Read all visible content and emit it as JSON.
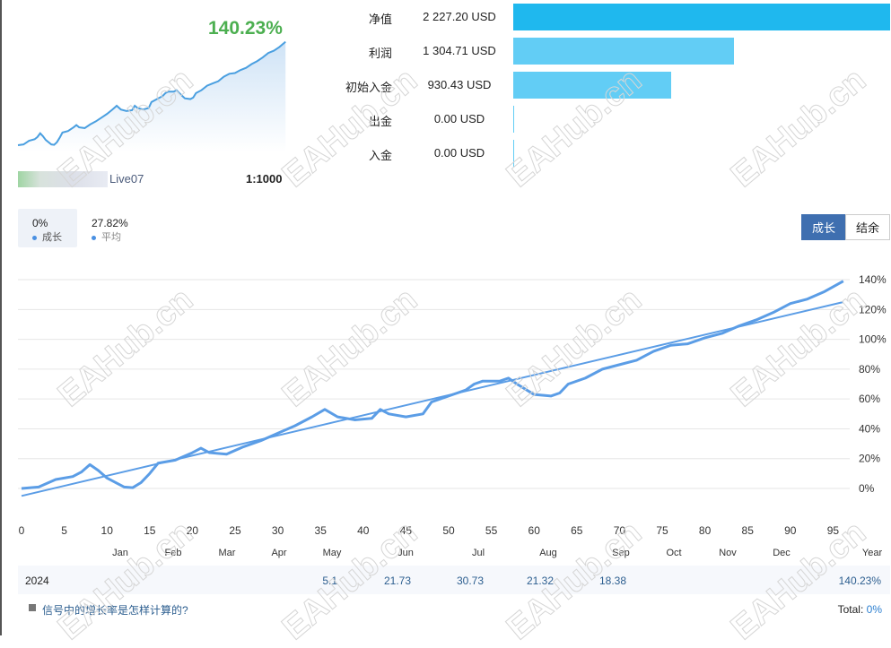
{
  "summary": {
    "growth": "140.23%",
    "account_suffix": "Live07",
    "leverage": "1:1000"
  },
  "stats": [
    {
      "label": "净值",
      "value": "2 227.20 USD",
      "fraction": 1.0,
      "color": "#1fb8ee"
    },
    {
      "label": "利润",
      "value": "1 304.71 USD",
      "fraction": 0.586,
      "color": "#62cdf5"
    },
    {
      "label": "初始入金",
      "value": "930.43 USD",
      "fraction": 0.418,
      "color": "#62cdf5"
    },
    {
      "label": "出金",
      "value": "0.00 USD",
      "fraction": 0,
      "color": "#62cdf5"
    },
    {
      "label": "入金",
      "value": "0.00 USD",
      "fraction": 0,
      "color": "#62cdf5"
    }
  ],
  "legend": {
    "growth_val": "0%",
    "growth_label": "成长",
    "avg_val": "27.82%",
    "avg_label": "平均"
  },
  "buttons": {
    "growth": "成长",
    "balance": "结余"
  },
  "watermark": "EAHub.cn",
  "chart_data": {
    "type": "line",
    "xlabel": "",
    "ylabel": "",
    "xlim": [
      0,
      97
    ],
    "ylim": [
      -10,
      150
    ],
    "x_ticks": [
      0,
      5,
      10,
      15,
      20,
      25,
      30,
      35,
      40,
      45,
      50,
      55,
      60,
      65,
      70,
      75,
      80,
      85,
      90,
      95
    ],
    "y_ticks": [
      0,
      20,
      40,
      60,
      80,
      100,
      120,
      140
    ],
    "y_tick_labels": [
      "0%",
      "20%",
      "40%",
      "60%",
      "80%",
      "100%",
      "120%",
      "140%"
    ],
    "series": [
      {
        "name": "成长",
        "color": "#5b9de6",
        "points": [
          [
            0,
            0
          ],
          [
            2,
            1
          ],
          [
            4,
            6
          ],
          [
            6,
            8
          ],
          [
            7,
            11
          ],
          [
            8,
            16
          ],
          [
            9,
            12
          ],
          [
            10,
            7
          ],
          [
            12,
            1
          ],
          [
            13,
            0.5
          ],
          [
            14,
            4
          ],
          [
            15,
            10
          ],
          [
            16,
            17
          ],
          [
            18,
            19
          ],
          [
            20,
            24
          ],
          [
            21,
            27
          ],
          [
            22,
            24
          ],
          [
            24,
            23
          ],
          [
            26,
            28
          ],
          [
            28,
            32
          ],
          [
            30,
            37
          ],
          [
            32,
            42
          ],
          [
            34,
            48
          ],
          [
            35.5,
            53
          ],
          [
            37,
            48
          ],
          [
            39,
            46
          ],
          [
            41,
            47
          ],
          [
            42,
            53
          ],
          [
            43,
            50
          ],
          [
            45,
            48
          ],
          [
            47,
            50
          ],
          [
            48,
            58
          ],
          [
            50,
            62
          ],
          [
            52,
            66
          ],
          [
            53,
            70
          ],
          [
            54,
            72
          ],
          [
            56,
            72
          ],
          [
            57,
            74
          ],
          [
            58,
            70
          ],
          [
            60,
            63
          ],
          [
            62,
            62
          ],
          [
            63,
            64
          ],
          [
            64,
            70
          ],
          [
            66,
            74
          ],
          [
            68,
            80
          ],
          [
            70,
            83
          ],
          [
            72,
            86
          ],
          [
            74,
            92
          ],
          [
            76,
            96
          ],
          [
            78,
            97
          ],
          [
            80,
            101
          ],
          [
            82,
            104
          ],
          [
            84,
            109
          ],
          [
            86,
            113
          ],
          [
            88,
            118
          ],
          [
            90,
            124
          ],
          [
            92,
            127
          ],
          [
            94,
            132
          ],
          [
            96.2,
            139
          ]
        ]
      },
      {
        "name": "trend",
        "color": "#5b9de6",
        "points": [
          [
            0,
            -5
          ],
          [
            96.2,
            125
          ]
        ]
      }
    ]
  },
  "table": {
    "months": [
      "Jan",
      "Feb",
      "Mar",
      "Apr",
      "May",
      "Jun",
      "Jul",
      "Aug",
      "Sep",
      "Oct",
      "Nov",
      "Dec",
      "Year"
    ],
    "year": "2024",
    "values": [
      "",
      "",
      "",
      "",
      "5.1",
      "21.73",
      "30.73",
      "21.32",
      "18.38",
      "",
      "",
      "",
      "140.23%"
    ]
  },
  "footer": {
    "help_link": "信号中的增长率是怎样计算的?",
    "total_label": "Total:",
    "total_value": "0%"
  }
}
